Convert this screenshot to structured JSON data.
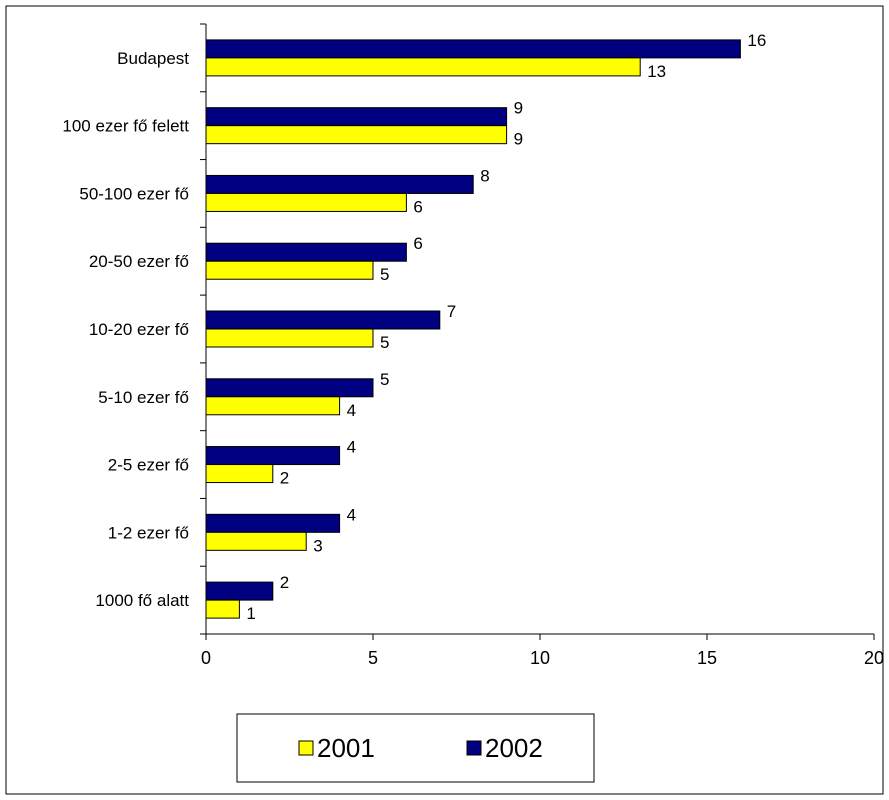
{
  "chart_data": {
    "type": "bar",
    "orientation": "horizontal",
    "categories": [
      "Budapest",
      "100 ezer fő felett",
      "50-100 ezer fő",
      "20-50 ezer fő",
      "10-20 ezer fő",
      "5-10 ezer fő",
      "2-5 ezer fő",
      "1-2 ezer fő",
      "1000 fő alatt"
    ],
    "series": [
      {
        "name": "2002",
        "values": [
          16,
          9,
          8,
          6,
          7,
          5,
          4,
          4,
          2
        ],
        "color": "#000080"
      },
      {
        "name": "2001",
        "values": [
          13,
          9,
          6,
          5,
          5,
          4,
          2,
          3,
          1
        ],
        "color": "#ffff00"
      }
    ],
    "xlim": [
      0,
      20
    ],
    "xticks": [
      0,
      5,
      10,
      15,
      20
    ],
    "grid": false,
    "legend": {
      "placement": "bottom",
      "order": [
        "2001",
        "2002"
      ]
    }
  }
}
